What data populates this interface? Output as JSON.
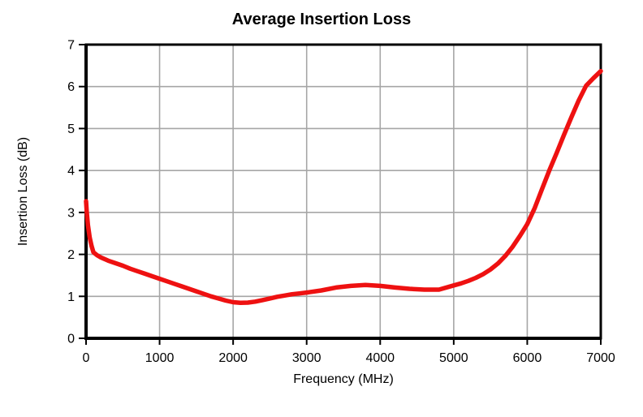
{
  "chart_data": {
    "type": "line",
    "title": "Average Insertion Loss",
    "xlabel": "Frequency (MHz)",
    "ylabel": "Insertion Loss (dB)",
    "xlim": [
      0,
      7000
    ],
    "ylim": [
      0,
      7
    ],
    "xticks": [
      0,
      1000,
      2000,
      3000,
      4000,
      5000,
      6000,
      7000
    ],
    "yticks": [
      0,
      1,
      2,
      3,
      4,
      5,
      6,
      7
    ],
    "grid": true,
    "legend": false,
    "colors": {
      "line": "#ee1111",
      "grid": "#a6a6a6",
      "axis": "#000000",
      "tick_label": "#000000",
      "background": "#ffffff"
    },
    "series": [
      {
        "name": "Average Insertion Loss",
        "x": [
          0,
          10,
          25,
          50,
          75,
          100,
          150,
          200,
          300,
          400,
          500,
          600,
          700,
          800,
          900,
          1000,
          1100,
          1200,
          1300,
          1400,
          1500,
          1600,
          1700,
          1800,
          1900,
          2000,
          2100,
          2200,
          2300,
          2400,
          2500,
          2600,
          2700,
          2800,
          2900,
          3000,
          3200,
          3400,
          3600,
          3800,
          4000,
          4200,
          4400,
          4600,
          4800,
          5000,
          5100,
          5200,
          5300,
          5400,
          5500,
          5600,
          5700,
          5800,
          5900,
          6000,
          6100,
          6200,
          6300,
          6400,
          6500,
          6600,
          6700,
          6800,
          6900,
          7000
        ],
        "values": [
          3.27,
          3.0,
          2.7,
          2.4,
          2.2,
          2.05,
          1.98,
          1.93,
          1.85,
          1.79,
          1.73,
          1.66,
          1.6,
          1.54,
          1.48,
          1.42,
          1.36,
          1.3,
          1.24,
          1.18,
          1.12,
          1.06,
          1.0,
          0.95,
          0.9,
          0.86,
          0.845,
          0.85,
          0.875,
          0.91,
          0.95,
          0.99,
          1.02,
          1.05,
          1.07,
          1.09,
          1.14,
          1.21,
          1.25,
          1.27,
          1.25,
          1.21,
          1.18,
          1.16,
          1.16,
          1.26,
          1.31,
          1.37,
          1.44,
          1.53,
          1.64,
          1.78,
          1.96,
          2.18,
          2.44,
          2.72,
          3.1,
          3.55,
          4.0,
          4.42,
          4.85,
          5.27,
          5.67,
          6.02,
          6.2,
          6.37
        ]
      }
    ]
  }
}
